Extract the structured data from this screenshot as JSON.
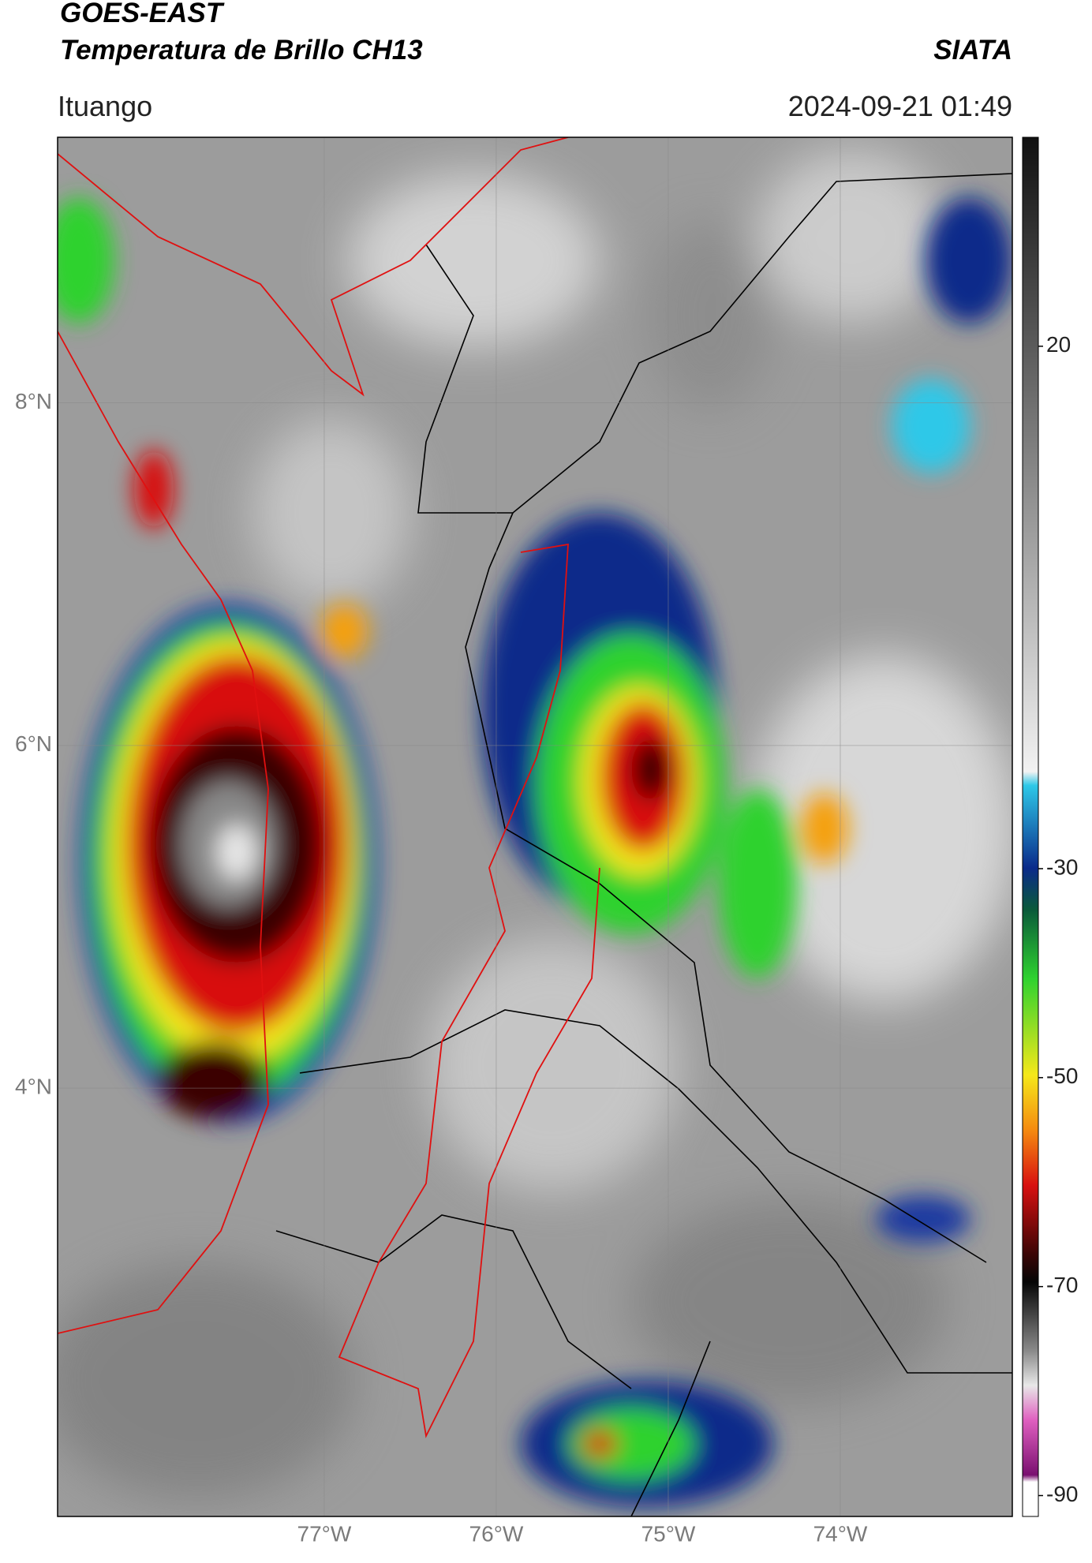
{
  "header": {
    "title_line1": "GOES-EAST",
    "title_line2": "Temperatura de Brillo CH13",
    "organization": "SIATA",
    "location": "Ituango",
    "datetime": "2024-09-21 01:49"
  },
  "map": {
    "xlim": [
      -78.55,
      -73.0
    ],
    "ylim": [
      1.5,
      9.55
    ],
    "xticks": [
      {
        "value": -77,
        "label": "77°W"
      },
      {
        "value": -76,
        "label": "76°W"
      },
      {
        "value": -75,
        "label": "75°W"
      },
      {
        "value": -74,
        "label": "74°W"
      }
    ],
    "yticks": [
      {
        "value": 8,
        "label": "8°N"
      },
      {
        "value": 6,
        "label": "6°N"
      },
      {
        "value": 4,
        "label": "4°N"
      }
    ],
    "grid": true
  },
  "colorbar": {
    "lim": [
      -92,
      40
    ],
    "ticks": [
      20,
      -30,
      -50,
      -70,
      -90
    ]
  }
}
